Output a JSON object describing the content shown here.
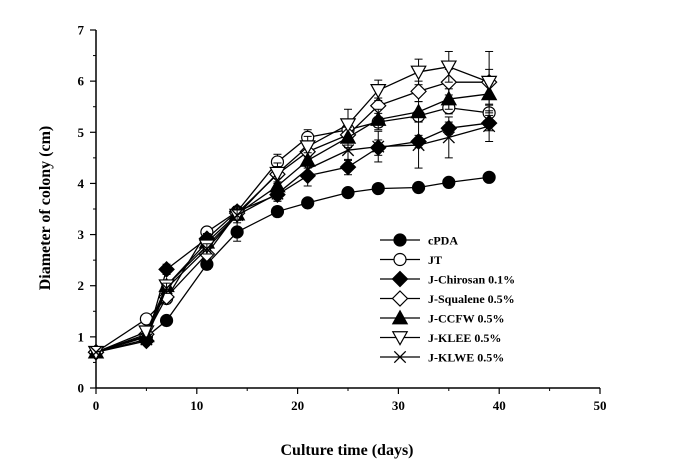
{
  "chart_data": {
    "type": "line",
    "title": "",
    "xlabel": "Culture time (days)",
    "ylabel": "Diameter of colony (cm)",
    "xlim": [
      0,
      50
    ],
    "ylim": [
      0,
      7
    ],
    "xticks": [
      "0",
      "10",
      "20",
      "30",
      "40",
      "50"
    ],
    "yticks": [
      "0",
      "1",
      "2",
      "3",
      "4",
      "5",
      "6",
      "7"
    ],
    "grid": false,
    "legend_position": "center-right",
    "series": [
      {
        "name": "cPDA",
        "marker": "filled-circle",
        "x": [
          0,
          5,
          7,
          11,
          14,
          18,
          21,
          25,
          28,
          32,
          35,
          39
        ],
        "y": [
          0.7,
          1.0,
          1.32,
          2.42,
          3.05,
          3.45,
          3.62,
          3.82,
          3.9,
          3.92,
          4.02,
          4.12
        ],
        "err": [
          0,
          0.05,
          0.05,
          0.1,
          0.18,
          0.1,
          0.08,
          0.05,
          0.05,
          0.1,
          0.06,
          0.06
        ]
      },
      {
        "name": "JT",
        "marker": "open-circle",
        "x": [
          0,
          5,
          7,
          11,
          14,
          18,
          21,
          25,
          28,
          32,
          35,
          39
        ],
        "y": [
          0.7,
          1.35,
          1.75,
          3.05,
          3.45,
          4.42,
          4.9,
          5.05,
          5.2,
          5.32,
          5.48,
          5.38
        ],
        "err": [
          0,
          0.08,
          0.1,
          0.08,
          0.1,
          0.15,
          0.15,
          0.1,
          0.1,
          0.1,
          0.12,
          0.15
        ]
      },
      {
        "name": "J-Chirosan 0.1%",
        "marker": "filled-diamond",
        "x": [
          0,
          5,
          7,
          11,
          14,
          18,
          21,
          25,
          28,
          32,
          35,
          39
        ],
        "y": [
          0.7,
          0.92,
          2.32,
          2.92,
          3.45,
          3.78,
          4.15,
          4.32,
          4.7,
          4.82,
          5.08,
          5.18
        ],
        "err": [
          0,
          0.05,
          0.1,
          0.1,
          0.1,
          0.1,
          0.2,
          0.15,
          0.15,
          0.12,
          0.12,
          0.15
        ]
      },
      {
        "name": "J-Squalene 0.5%",
        "marker": "open-diamond",
        "x": [
          0,
          5,
          7,
          11,
          14,
          18,
          21,
          25,
          28,
          32,
          35,
          39
        ],
        "y": [
          0.7,
          1.05,
          1.78,
          2.62,
          3.42,
          4.18,
          4.62,
          4.95,
          5.52,
          5.8,
          5.98,
          5.98
        ],
        "err": [
          0,
          0.05,
          0.1,
          0.1,
          0.1,
          0.15,
          0.15,
          0.2,
          0.15,
          0.2,
          0.25,
          0.25
        ]
      },
      {
        "name": "J-CCFW 0.5%",
        "marker": "filled-triangle-up",
        "x": [
          0,
          5,
          7,
          11,
          14,
          18,
          21,
          25,
          28,
          32,
          35,
          39
        ],
        "y": [
          0.7,
          1.02,
          2.0,
          2.85,
          3.4,
          3.95,
          4.45,
          4.9,
          5.25,
          5.4,
          5.65,
          5.75
        ],
        "err": [
          0,
          0.05,
          0.1,
          0.1,
          0.1,
          0.15,
          0.15,
          0.2,
          0.2,
          0.2,
          0.2,
          0.2
        ]
      },
      {
        "name": "J-KLEE 0.5%",
        "marker": "open-triangle-down",
        "x": [
          0,
          5,
          7,
          11,
          14,
          18,
          21,
          25,
          28,
          32,
          35,
          39
        ],
        "y": [
          0.7,
          1.1,
          2.0,
          2.78,
          3.38,
          4.2,
          4.72,
          5.15,
          5.82,
          6.18,
          6.28,
          5.98
        ],
        "err": [
          0,
          0.05,
          0.1,
          0.1,
          0.1,
          0.2,
          0.2,
          0.3,
          0.2,
          0.25,
          0.3,
          0.6
        ]
      },
      {
        "name": "J-KLWE 0.5%",
        "marker": "x",
        "x": [
          0,
          5,
          7,
          11,
          14,
          18,
          21,
          25,
          28,
          32,
          35,
          39
        ],
        "y": [
          0.7,
          0.95,
          1.95,
          2.72,
          3.38,
          3.8,
          4.28,
          4.65,
          4.72,
          4.75,
          4.9,
          5.12
        ],
        "err": [
          0,
          0.05,
          0.1,
          0.1,
          0.1,
          0.15,
          0.15,
          0.2,
          0.3,
          0.45,
          0.4,
          0.3
        ]
      }
    ]
  }
}
